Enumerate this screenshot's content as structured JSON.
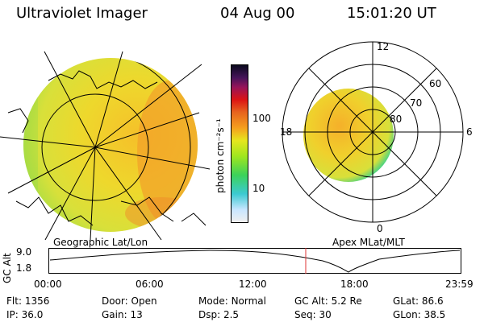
{
  "header": {
    "instrument": "Ultraviolet Imager",
    "date": "04 Aug 00",
    "time": "15:01:20 UT"
  },
  "geo_panel": {
    "label": "Geographic Lat/Lon"
  },
  "apex_panel": {
    "label": "Apex MLat/MLT",
    "mlt_labels": {
      "top": "12",
      "left": "18",
      "right": "6",
      "bottom": "0"
    },
    "lat_labels": [
      "60",
      "70",
      "80"
    ]
  },
  "colorbar": {
    "unit": "photon cm⁻²s⁻¹",
    "ticks": [
      "100",
      "10"
    ],
    "colors": [
      "#f0f0f0",
      "#c8e6ff",
      "#3ccad2",
      "#3cd25a",
      "#a0e61e",
      "#e6e61e",
      "#f5a01e",
      "#e6641e",
      "#dc1414",
      "#96145a",
      "#46145a",
      "#0a0a1e"
    ]
  },
  "altitude_plot": {
    "ylabel": "GC Alt",
    "y_ticks": [
      "9.0",
      "1.8"
    ],
    "x_ticks": [
      "00:00",
      "06:00",
      "12:00",
      "18:00",
      "23:59"
    ],
    "marker_color": "#dd3333"
  },
  "info": {
    "flt": {
      "label": "Flt:",
      "value": "1356"
    },
    "ip": {
      "label": "IP:",
      "value": "36.0"
    },
    "door": {
      "label": "Door:",
      "value": "Open"
    },
    "gain": {
      "label": "Gain:",
      "value": "13"
    },
    "mode": {
      "label": "Mode:",
      "value": "Normal"
    },
    "dsp": {
      "label": "Dsp:",
      "value": "2.5"
    },
    "gcalt": {
      "label": "GC Alt:",
      "value": "5.2 Re"
    },
    "seq": {
      "label": "Seq:",
      "value": "30"
    },
    "glat": {
      "label": "GLat:",
      "value": "86.6"
    },
    "glon": {
      "label": "GLon:",
      "value": "38.5"
    }
  }
}
